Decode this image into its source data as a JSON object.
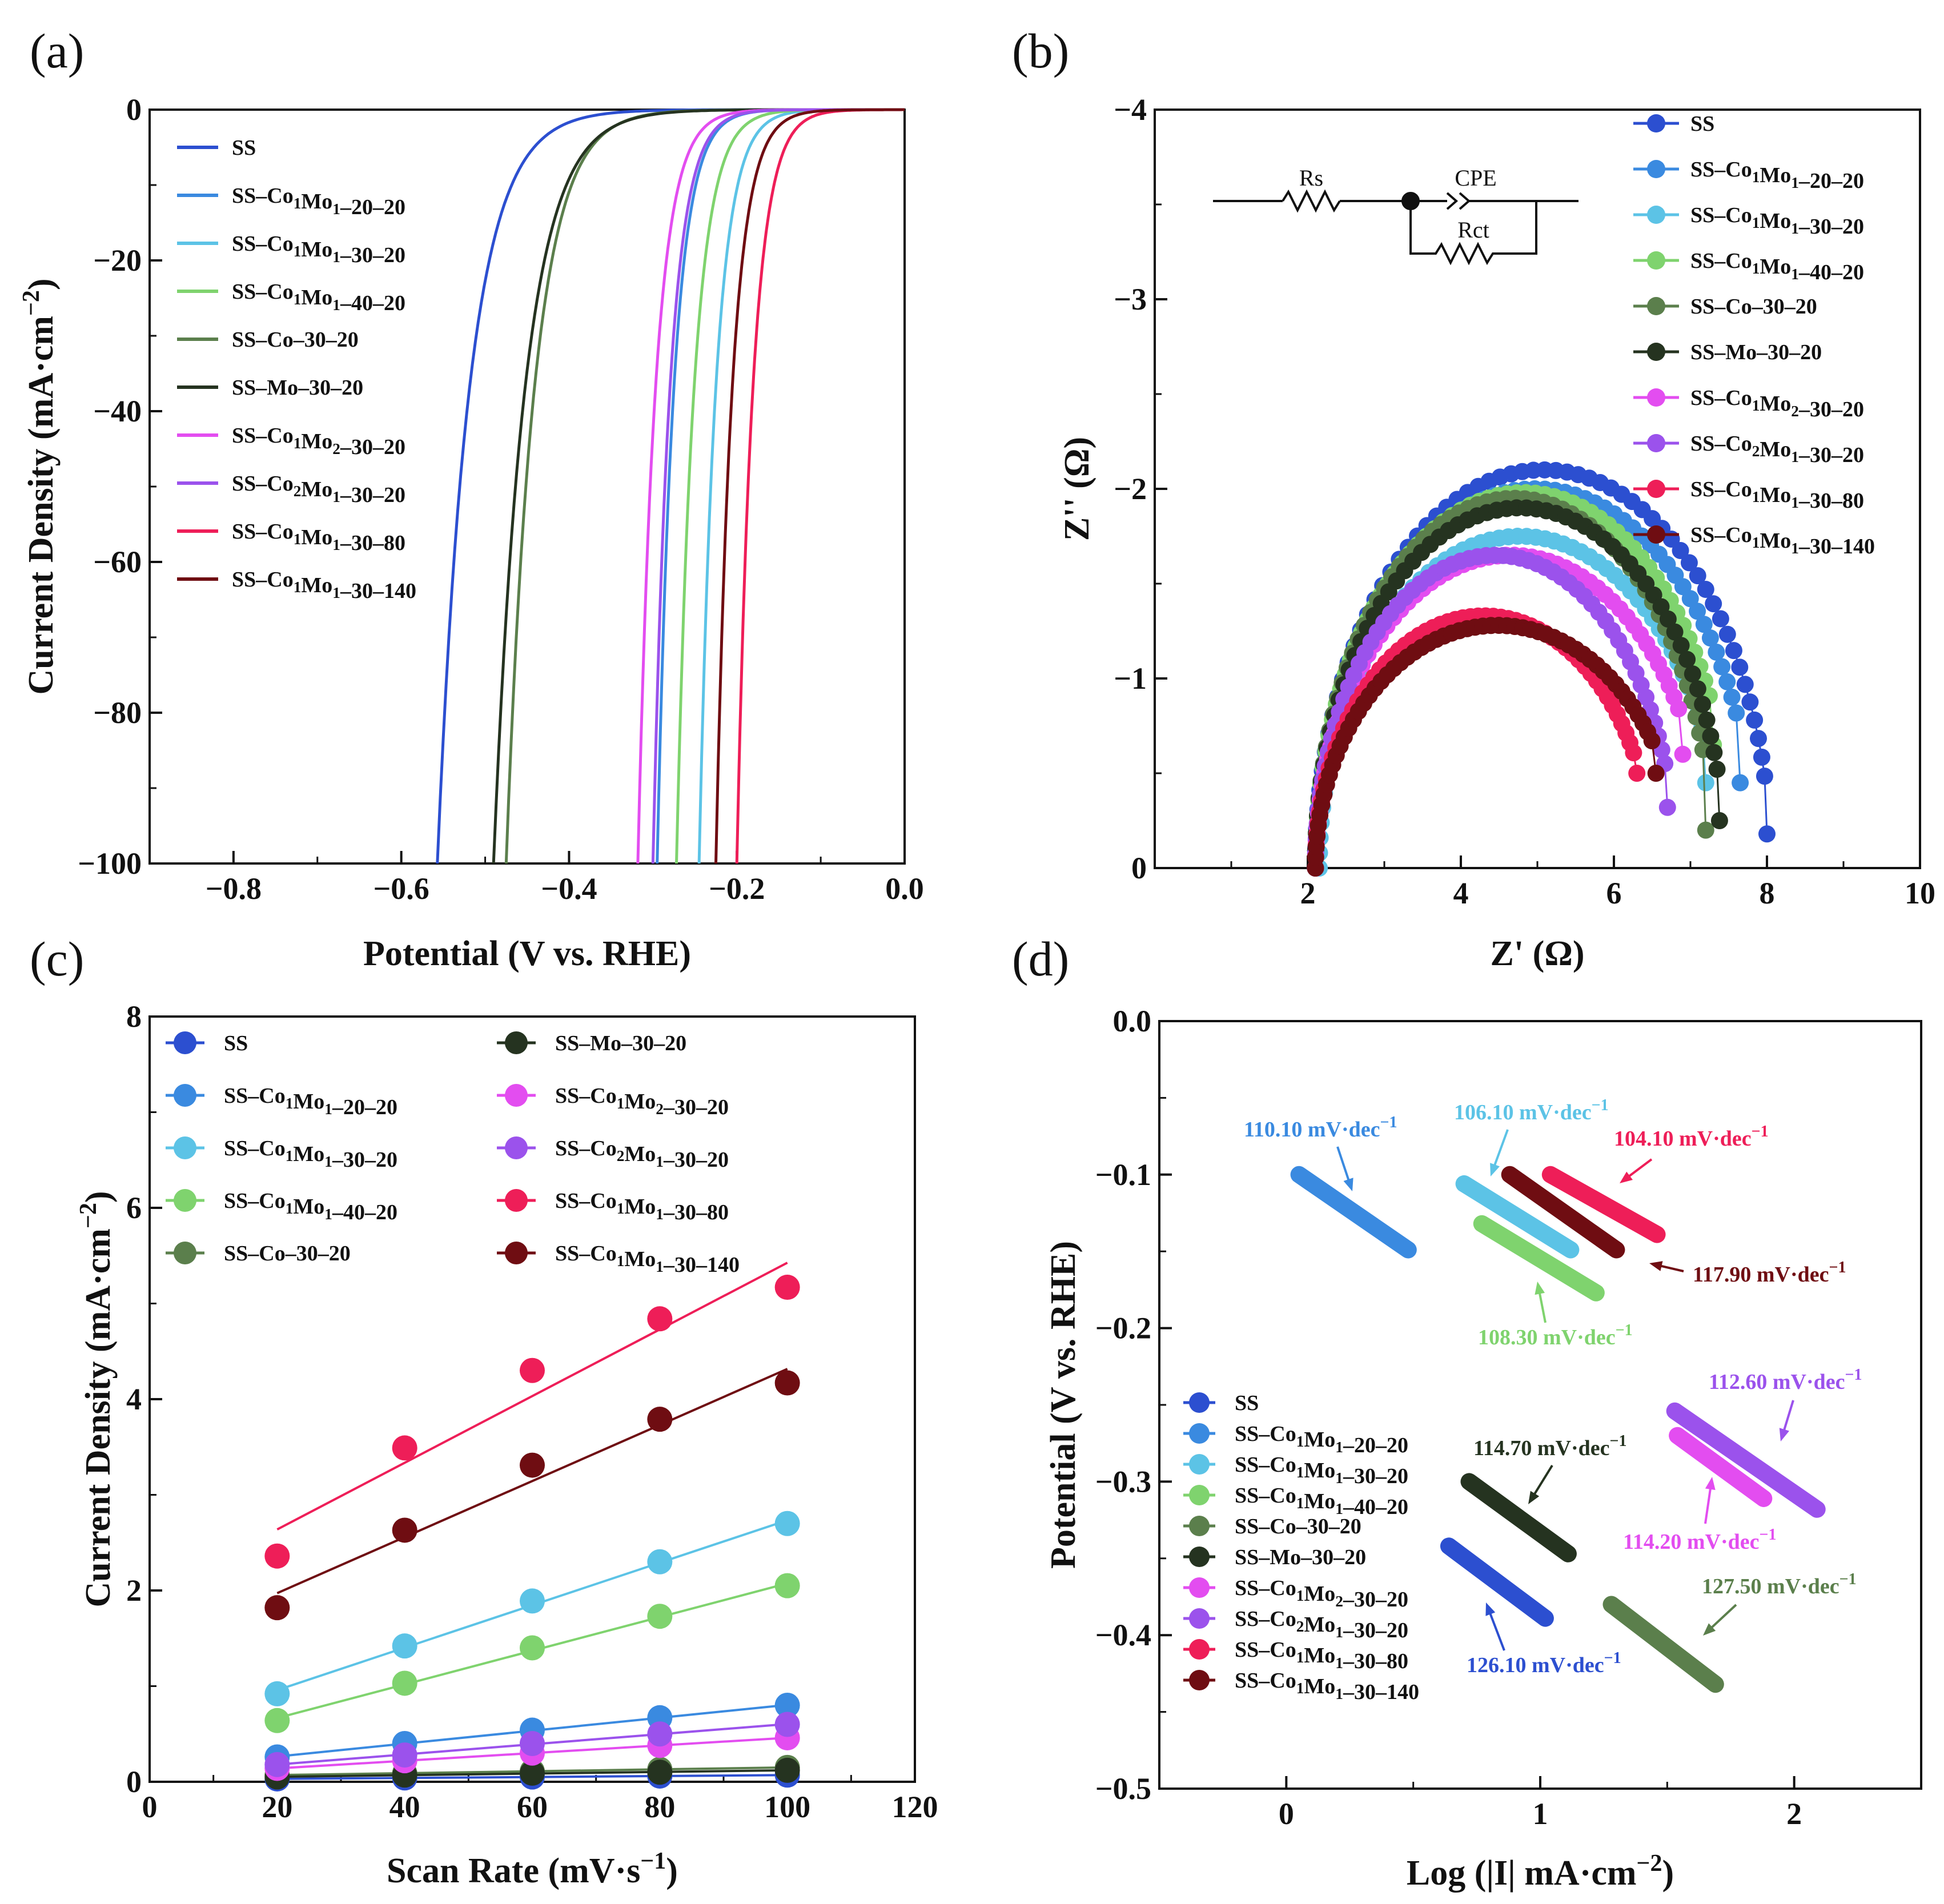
{
  "colors": {
    "SS": "#2c4fd0",
    "SS–Co1Mo1–20–20": "#3a8ae0",
    "SS–Co1Mo1–30–20": "#5cc3e6",
    "SS–Co1Mo1–40–20": "#7fd36e",
    "SS–Co–30–20": "#5b7f4c",
    "SS–Mo–30–20": "#253320",
    "SS–Co1Mo2–30–20": "#e34df0",
    "SS–Co2Mo1–30–20": "#9b52ec",
    "SS–Co1Mo1–30–80": "#ee1e58",
    "SS–Co1Mo1–30–140": "#6f0d12"
  },
  "chart_data": [
    {
      "panel": "(a)",
      "type": "line",
      "xlabel": "Potential (V vs. RHE)",
      "ylabel": "Current Density (mA·cm⁻²)",
      "xlim": [
        -0.9,
        0.0
      ],
      "ylim": [
        -100,
        0
      ],
      "xticks": [
        "−0.8",
        "−0.6",
        "−0.4",
        "−0.2",
        "0.0"
      ],
      "yticks": [
        "0",
        "−20",
        "−40",
        "−60",
        "−80",
        "−100"
      ],
      "legend": [
        "SS",
        "SS–Co1Mo1–20–20",
        "SS–Co1Mo1–30–20",
        "SS–Co1Mo1–40–20",
        "SS–Co–30–20",
        "SS–Mo–30–20",
        "SS–Co1Mo2–30–20",
        "SS–Co2Mo1–30–20",
        "SS–Co1Mo1–30–80",
        "SS–Co1Mo1–30–140"
      ],
      "series": [
        {
          "name": "SS",
          "x_at_minus100": -0.557,
          "onset": -0.22,
          "b": 0.1
        },
        {
          "name": "SS–Co1Mo1–20–20",
          "x_at_minus100": -0.295,
          "onset": -0.115,
          "b": 0.052
        },
        {
          "name": "SS–Co1Mo1–30–20",
          "x_at_minus100": -0.245,
          "onset": -0.07,
          "b": 0.052
        },
        {
          "name": "SS–Co1Mo1–40–20",
          "x_at_minus100": -0.272,
          "onset": -0.085,
          "b": 0.055
        },
        {
          "name": "SS–Co–30–20",
          "x_at_minus100": -0.475,
          "onset": -0.17,
          "b": 0.088
        },
        {
          "name": "SS–Mo–30–20",
          "x_at_minus100": -0.49,
          "onset": -0.15,
          "b": 0.098
        },
        {
          "name": "SS–Co1Mo2–30–20",
          "x_at_minus100": -0.318,
          "onset": -0.13,
          "b": 0.055
        },
        {
          "name": "SS–Co2Mo1–30–20",
          "x_at_minus100": -0.3,
          "onset": -0.12,
          "b": 0.053
        },
        {
          "name": "SS–Co1Mo1–30–80",
          "x_at_minus100": -0.2,
          "onset": -0.035,
          "b": 0.05
        },
        {
          "name": "SS–Co1Mo1–30–140",
          "x_at_minus100": -0.225,
          "onset": -0.055,
          "b": 0.051
        }
      ]
    },
    {
      "panel": "(b)",
      "type": "scatter",
      "xlabel": "Z' (Ω)",
      "ylabel": "Z'' (Ω)",
      "xlim": [
        0,
        10
      ],
      "ylim": [
        0,
        -4
      ],
      "xticks": [
        "2",
        "4",
        "6",
        "8",
        "10"
      ],
      "yticks": [
        "0",
        "−1",
        "−2",
        "−3",
        "−4"
      ],
      "legend": [
        "SS",
        "SS–Co1Mo1–20–20",
        "SS–Co1Mo1–30–20",
        "SS–Co1Mo1–40–20",
        "SS–Co–30–20",
        "SS–Mo–30–20",
        "SS–Co1Mo2–30–20",
        "SS–Co2Mo1–30–20",
        "SS–Co1Mo1–30–80",
        "SS–Co1Mo1–30–140"
      ],
      "circuit": {
        "rs": "Rs",
        "cpe": "CPE",
        "rct": "Rct"
      },
      "series": [
        {
          "name": "SS",
          "zmin": 2.1,
          "zmax": 8.05,
          "peak": 2.1,
          "endZ": 8.0,
          "endY": 0.18
        },
        {
          "name": "SS–Co1Mo1–20–20",
          "zmin": 2.1,
          "zmax": 7.85,
          "peak": 2.0,
          "endZ": 7.65,
          "endY": 0.45
        },
        {
          "name": "SS–Co1Mo1–30–20",
          "zmin": 2.15,
          "zmax": 7.4,
          "peak": 1.75,
          "endZ": 7.2,
          "endY": 0.45
        },
        {
          "name": "SS–Co1Mo1–40–20",
          "zmin": 2.1,
          "zmax": 7.55,
          "peak": 1.98,
          "endZ": 7.3,
          "endY": 0.65
        },
        {
          "name": "SS–Co–30–20",
          "zmin": 2.1,
          "zmax": 7.3,
          "peak": 1.95,
          "endZ": 7.2,
          "endY": 0.2
        },
        {
          "name": "SS–Mo–30–20",
          "zmin": 2.1,
          "zmax": 7.45,
          "peak": 1.9,
          "endZ": 7.38,
          "endY": 0.25
        },
        {
          "name": "SS–Co1Mo2–30–20",
          "zmin": 2.1,
          "zmax": 7.2,
          "peak": 1.65,
          "endZ": 6.9,
          "endY": 0.6
        },
        {
          "name": "SS–Co2Mo1–30–20",
          "zmin": 2.1,
          "zmax": 6.8,
          "peak": 1.65,
          "endZ": 6.7,
          "endY": 0.32
        },
        {
          "name": "SS–Co1Mo1–30–80",
          "zmin": 2.1,
          "zmax": 6.5,
          "peak": 1.33,
          "endZ": 6.3,
          "endY": 0.5
        },
        {
          "name": "SS–Co1Mo1–30–140",
          "zmin": 2.1,
          "zmax": 6.85,
          "peak": 1.28,
          "endZ": 6.55,
          "endY": 0.5
        }
      ]
    },
    {
      "panel": "(c)",
      "type": "scatter",
      "xlabel": "Scan Rate (mV·s⁻¹)",
      "ylabel": "Current Density (mA·cm⁻²)",
      "xlim": [
        0,
        120
      ],
      "ylim": [
        0,
        8
      ],
      "xticks": [
        "0",
        "20",
        "40",
        "60",
        "80",
        "100",
        "120"
      ],
      "yticks": [
        "0",
        "2",
        "4",
        "6",
        "8"
      ],
      "x": [
        20,
        40,
        60,
        80,
        100
      ],
      "legend_left": [
        "SS",
        "SS–Co1Mo1–20–20",
        "SS–Co1Mo1–30–20",
        "SS–Co1Mo1–40–20",
        "SS–Co–30–20"
      ],
      "legend_right": [
        "SS–Mo–30–20",
        "SS–Co1Mo2–30–20",
        "SS–Co2Mo1–30–20",
        "SS–Co1Mo1–30–80",
        "SS–Co1Mo1–30–140"
      ],
      "series": [
        {
          "name": "SS",
          "values": [
            0.03,
            0.04,
            0.05,
            0.06,
            0.07
          ]
        },
        {
          "name": "SS–Co1Mo1–20–20",
          "values": [
            0.26,
            0.4,
            0.54,
            0.67,
            0.8
          ]
        },
        {
          "name": "SS–Co1Mo1–30–20",
          "values": [
            0.92,
            1.42,
            1.89,
            2.3,
            2.7
          ]
        },
        {
          "name": "SS–Co1Mo1–40–20",
          "values": [
            0.64,
            1.03,
            1.4,
            1.73,
            2.05
          ]
        },
        {
          "name": "SS–Co–30–20",
          "values": [
            0.07,
            0.09,
            0.11,
            0.13,
            0.15
          ]
        },
        {
          "name": "SS–Mo–30–20",
          "values": [
            0.05,
            0.07,
            0.09,
            0.1,
            0.12
          ]
        },
        {
          "name": "SS–Co1Mo2–30–20",
          "values": [
            0.14,
            0.22,
            0.3,
            0.38,
            0.46
          ]
        },
        {
          "name": "SS–Co2Mo1–30–20",
          "values": [
            0.18,
            0.28,
            0.4,
            0.5,
            0.6
          ]
        },
        {
          "name": "SS–Co1Mo1–30–80",
          "values": [
            2.36,
            3.49,
            4.3,
            4.84,
            5.17
          ]
        },
        {
          "name": "SS–Co1Mo1–30–140",
          "values": [
            1.82,
            2.63,
            3.31,
            3.79,
            4.17
          ]
        }
      ]
    },
    {
      "panel": "(d)",
      "type": "line",
      "xlabel": "Log (|I| mA·cm⁻²)",
      "ylabel": "Potential (V vs. RHE)",
      "xlim": [
        -0.5,
        2.5
      ],
      "ylim": [
        -0.5,
        0.0
      ],
      "xticks": [
        "0",
        "1",
        "2"
      ],
      "yticks": [
        "0.0",
        "−0.1",
        "−0.2",
        "−0.3",
        "−0.4",
        "−0.5"
      ],
      "legend": [
        "SS",
        "SS–Co1Mo1–20–20",
        "SS–Co1Mo1–30–20",
        "SS–Co1Mo1–40–20",
        "SS–Co–30–20",
        "SS–Mo–30–20",
        "SS–Co1Mo2–30–20",
        "SS–Co2Mo1–30–20",
        "SS–Co1Mo1–30–80",
        "SS–Co1Mo1–30–140"
      ],
      "series": [
        {
          "name": "SS",
          "x": [
            0.64,
            1.02
          ],
          "y": [
            -0.342,
            -0.389
          ],
          "slope_label": "126.10 mV·dec⁻¹"
        },
        {
          "name": "SS–Co1Mo1–20–20",
          "x": [
            0.05,
            0.48
          ],
          "y": [
            -0.1,
            -0.149
          ],
          "slope_label": "110.10 mV·dec⁻¹"
        },
        {
          "name": "SS–Co1Mo1–30–20",
          "x": [
            0.7,
            1.12
          ],
          "y": [
            -0.106,
            -0.149
          ],
          "slope_label": "106.10 mV·dec⁻¹"
        },
        {
          "name": "SS–Co1Mo1–40–20",
          "x": [
            0.77,
            1.22
          ],
          "y": [
            -0.132,
            -0.177
          ],
          "slope_label": "108.30 mV·dec⁻¹"
        },
        {
          "name": "SS–Co–30–20",
          "x": [
            1.28,
            1.69
          ],
          "y": [
            -0.38,
            -0.432
          ],
          "slope_label": "127.50 mV·dec⁻¹"
        },
        {
          "name": "SS–Mo–30–20",
          "x": [
            0.72,
            1.11
          ],
          "y": [
            -0.3,
            -0.347
          ],
          "slope_label": "114.70 mV·dec⁻¹"
        },
        {
          "name": "SS–Co1Mo2–30–20",
          "x": [
            1.54,
            1.88
          ],
          "y": [
            -0.27,
            -0.311
          ],
          "slope_label": "114.20 mV·dec⁻¹"
        },
        {
          "name": "SS–Co2Mo1–30–20",
          "x": [
            1.53,
            2.09
          ],
          "y": [
            -0.254,
            -0.318
          ],
          "slope_label": "112.60 mV·dec⁻¹"
        },
        {
          "name": "SS–Co1Mo1–30–80",
          "x": [
            1.04,
            1.46
          ],
          "y": [
            -0.1,
            -0.139
          ],
          "slope_label": "104.10 mV·dec⁻¹"
        },
        {
          "name": "SS–Co1Mo1–30–140",
          "x": [
            0.88,
            1.3
          ],
          "y": [
            -0.1,
            -0.149
          ],
          "slope_label": "117.90 mV·dec⁻¹"
        }
      ]
    }
  ]
}
